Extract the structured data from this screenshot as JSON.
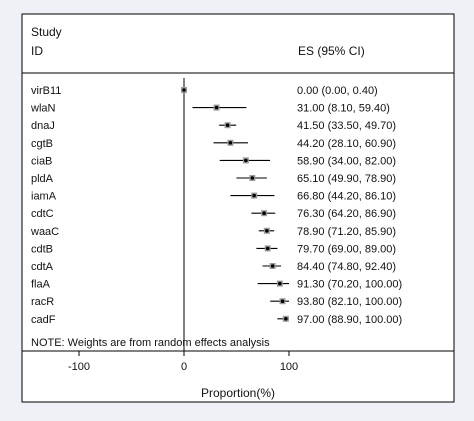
{
  "chart_data": {
    "type": "forest",
    "header": {
      "line1": "Study",
      "line2": "ID",
      "es_header": "ES (95% CI)"
    },
    "studies": [
      {
        "label": "virB11",
        "es": 0.0,
        "lo": 0.0,
        "hi": 0.4,
        "es_text": "0.00 (0.00, 0.40)"
      },
      {
        "label": "wlaN",
        "es": 31.0,
        "lo": 8.1,
        "hi": 59.4,
        "es_text": "31.00 (8.10, 59.40)"
      },
      {
        "label": "dnaJ",
        "es": 41.5,
        "lo": 33.5,
        "hi": 49.7,
        "es_text": "41.50 (33.50, 49.70)"
      },
      {
        "label": "cgtB",
        "es": 44.2,
        "lo": 28.1,
        "hi": 60.9,
        "es_text": "44.20 (28.10, 60.90)"
      },
      {
        "label": "ciaB",
        "es": 58.9,
        "lo": 34.0,
        "hi": 82.0,
        "es_text": "58.90 (34.00, 82.00)"
      },
      {
        "label": "pldA",
        "es": 65.1,
        "lo": 49.9,
        "hi": 78.9,
        "es_text": "65.10 (49.90, 78.90)"
      },
      {
        "label": "iamA",
        "es": 66.8,
        "lo": 44.2,
        "hi": 86.1,
        "es_text": "66.80 (44.20, 86.10)"
      },
      {
        "label": "cdtC",
        "es": 76.3,
        "lo": 64.2,
        "hi": 86.9,
        "es_text": "76.30 (64.20, 86.90)"
      },
      {
        "label": "waaC",
        "es": 78.9,
        "lo": 71.2,
        "hi": 85.9,
        "es_text": "78.90 (71.20, 85.90)"
      },
      {
        "label": "cdtB",
        "es": 79.7,
        "lo": 69.0,
        "hi": 89.0,
        "es_text": "79.70 (69.00, 89.00)"
      },
      {
        "label": "cdtA",
        "es": 84.4,
        "lo": 74.8,
        "hi": 92.4,
        "es_text": "84.40 (74.80, 92.40)"
      },
      {
        "label": "flaA",
        "es": 91.3,
        "lo": 70.2,
        "hi": 100.0,
        "es_text": "91.30 (70.20, 100.00)"
      },
      {
        "label": "racR",
        "es": 93.8,
        "lo": 82.1,
        "hi": 100.0,
        "es_text": "93.80 (82.10, 100.00)"
      },
      {
        "label": "cadF",
        "es": 97.0,
        "lo": 88.9,
        "hi": 100.0,
        "es_text": "97.00 (88.90, 100.00)"
      }
    ],
    "note": "NOTE: Weights are from random effects analysis",
    "xlabel": "Proportion(%)",
    "xticks": [
      {
        "value": -100,
        "label": "-100"
      },
      {
        "value": 0,
        "label": "0"
      },
      {
        "value": 100,
        "label": "100"
      }
    ],
    "xlim": [
      -150,
      150
    ],
    "reference_line": 0,
    "grid": false,
    "colors": {
      "background": "#eef1f6",
      "plot_background": "#ffffff",
      "marks": "#000000",
      "frame": "#000000"
    }
  }
}
